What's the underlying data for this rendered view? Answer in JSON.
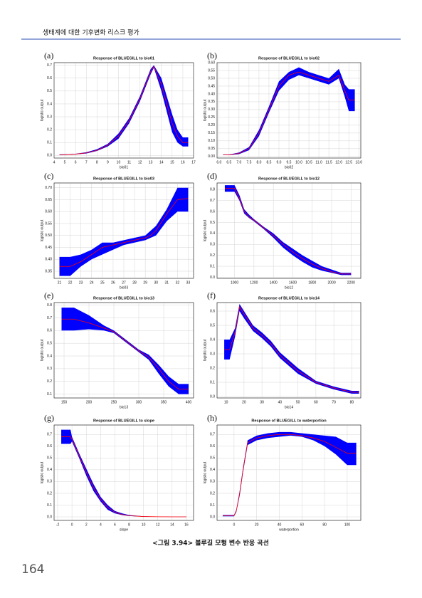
{
  "header": {
    "title": "생태계에 대한 기후변화 리스크 평가"
  },
  "caption": "<그림 3.94> 블루길 모형 변수 반응 곡선",
  "page_number": "164",
  "chart_data": [
    {
      "type": "band-line",
      "panel": "(a)",
      "title": "Response of BLUEGILL to bio01",
      "xlabel": "bio01",
      "ylabel": "logistic output",
      "color": "#ff0000",
      "band_color": "#0000ff",
      "grid": true,
      "xlim": [
        4,
        17
      ],
      "xticks": [
        4,
        5,
        6,
        7,
        8,
        9,
        10,
        11,
        12,
        13,
        14,
        15,
        16,
        17
      ],
      "ylim": [
        -0.02,
        0.72
      ],
      "yticks": [
        {
          "value": 0,
          "label": "0.0"
        },
        0.1,
        0.2,
        0.3,
        0.4,
        0.5,
        0.6,
        0.7
      ],
      "x": [
        4.5,
        5,
        6,
        7,
        8,
        9,
        10,
        11,
        12,
        13,
        13.3,
        14,
        15,
        15.5,
        16,
        16.5
      ],
      "values": [
        0.005,
        0.006,
        0.01,
        0.02,
        0.04,
        0.08,
        0.15,
        0.27,
        0.44,
        0.65,
        0.69,
        0.55,
        0.25,
        0.15,
        0.1,
        0.1
      ],
      "lower": [
        0.003,
        0.004,
        0.008,
        0.015,
        0.035,
        0.07,
        0.13,
        0.25,
        0.42,
        0.63,
        0.68,
        0.5,
        0.18,
        0.1,
        0.07,
        0.07
      ],
      "upper": [
        0.008,
        0.009,
        0.013,
        0.025,
        0.048,
        0.09,
        0.17,
        0.29,
        0.46,
        0.67,
        0.7,
        0.6,
        0.32,
        0.2,
        0.14,
        0.14
      ]
    },
    {
      "type": "band-line",
      "panel": "(b)",
      "title": "Response of BLUEGILL to bio02",
      "xlabel": "bio02",
      "ylabel": "logistic output",
      "color": "#ff0000",
      "band_color": "#0000ff",
      "grid": true,
      "xlim": [
        5.9,
        13.1
      ],
      "xticks": [
        {
          "value": 6,
          "label": "6.0"
        },
        6.5,
        {
          "value": 7,
          "label": "7.0"
        },
        7.5,
        {
          "value": 8,
          "label": "8.0"
        },
        8.5,
        {
          "value": 9,
          "label": "9.0"
        },
        9.5,
        {
          "value": 10,
          "label": "10.0"
        },
        10.5,
        {
          "value": 11,
          "label": "11.0"
        },
        11.5,
        {
          "value": 12,
          "label": "12.0"
        },
        12.5,
        {
          "value": 13,
          "label": "13.0"
        }
      ],
      "ylim": [
        -0.01,
        0.6
      ],
      "yticks": [
        {
          "value": 0,
          "label": "0.00"
        },
        0.05,
        {
          "value": 0.1,
          "label": "0.10"
        },
        0.15,
        {
          "value": 0.2,
          "label": "0.20"
        },
        0.25,
        {
          "value": 0.3,
          "label": "0.30"
        },
        0.35,
        {
          "value": 0.4,
          "label": "0.40"
        },
        0.45,
        {
          "value": 0.5,
          "label": "0.50"
        },
        0.55,
        {
          "value": 0.6,
          "label": "0.60"
        }
      ],
      "x": [
        6.2,
        6.5,
        7,
        7.5,
        8,
        8.5,
        9,
        9.5,
        10,
        10.5,
        11,
        11.5,
        12,
        12.3,
        12.5,
        12.8
      ],
      "values": [
        0.01,
        0.01,
        0.02,
        0.05,
        0.15,
        0.3,
        0.45,
        0.52,
        0.54,
        0.52,
        0.5,
        0.48,
        0.52,
        0.42,
        0.36,
        0.36
      ],
      "lower": [
        0.008,
        0.008,
        0.015,
        0.04,
        0.13,
        0.28,
        0.42,
        0.49,
        0.52,
        0.5,
        0.48,
        0.46,
        0.5,
        0.38,
        0.29,
        0.29
      ],
      "upper": [
        0.012,
        0.012,
        0.025,
        0.06,
        0.17,
        0.32,
        0.48,
        0.54,
        0.57,
        0.54,
        0.52,
        0.5,
        0.56,
        0.46,
        0.43,
        0.43
      ]
    },
    {
      "type": "band-line",
      "panel": "(c)",
      "title": "Response of BLUEGILL to bio03",
      "xlabel": "bio03",
      "ylabel": "logistic output",
      "color": "#ff0000",
      "band_color": "#0000ff",
      "grid": true,
      "xlim": [
        20.5,
        33.5
      ],
      "xticks": [
        21,
        22,
        23,
        24,
        25,
        26,
        27,
        28,
        29,
        30,
        31,
        32,
        33
      ],
      "ylim": [
        0.32,
        0.72
      ],
      "yticks": [
        0.35,
        {
          "value": 0.4,
          "label": "0.40"
        },
        0.45,
        {
          "value": 0.5,
          "label": "0.50"
        },
        0.55,
        {
          "value": 0.6,
          "label": "0.60"
        },
        0.65,
        {
          "value": 0.7,
          "label": "0.70"
        }
      ],
      "x": [
        21,
        22,
        23,
        24,
        25,
        26,
        27,
        28,
        29,
        29.5,
        30,
        31,
        32,
        33
      ],
      "values": [
        0.37,
        0.37,
        0.39,
        0.42,
        0.45,
        0.46,
        0.47,
        0.48,
        0.49,
        0.5,
        0.52,
        0.59,
        0.65,
        0.655
      ],
      "lower": [
        0.33,
        0.33,
        0.37,
        0.4,
        0.42,
        0.44,
        0.46,
        0.47,
        0.48,
        0.49,
        0.5,
        0.56,
        0.6,
        0.6
      ],
      "upper": [
        0.41,
        0.41,
        0.42,
        0.44,
        0.47,
        0.47,
        0.48,
        0.49,
        0.5,
        0.52,
        0.54,
        0.61,
        0.7,
        0.7
      ]
    },
    {
      "type": "band-line",
      "panel": "(d)",
      "title": "Response of BLUEGILL to bio12",
      "xlabel": "bio12",
      "ylabel": "logistic output",
      "color": "#ff0000",
      "band_color": "#0000ff",
      "grid": true,
      "xlim": [
        820,
        2300
      ],
      "xticks": [
        1000,
        1200,
        1400,
        1600,
        1800,
        2000,
        2200
      ],
      "ylim": [
        -0.01,
        0.86
      ],
      "yticks": [
        {
          "value": 0,
          "label": "0.0"
        },
        0.1,
        0.2,
        0.3,
        0.4,
        0.5,
        0.6,
        0.7,
        0.8
      ],
      "x": [
        900,
        1000,
        1050,
        1100,
        1150,
        1200,
        1300,
        1400,
        1500,
        1600,
        1700,
        1800,
        1900,
        2000,
        2100,
        2200
      ],
      "values": [
        0.81,
        0.81,
        0.72,
        0.6,
        0.55,
        0.52,
        0.45,
        0.38,
        0.3,
        0.23,
        0.17,
        0.12,
        0.08,
        0.05,
        0.03,
        0.03
      ],
      "lower": [
        0.78,
        0.78,
        0.7,
        0.58,
        0.54,
        0.51,
        0.44,
        0.36,
        0.27,
        0.2,
        0.14,
        0.09,
        0.06,
        0.04,
        0.02,
        0.02
      ],
      "upper": [
        0.84,
        0.84,
        0.75,
        0.62,
        0.57,
        0.53,
        0.46,
        0.4,
        0.32,
        0.26,
        0.2,
        0.15,
        0.1,
        0.07,
        0.04,
        0.04
      ]
    },
    {
      "type": "band-line",
      "panel": "(e)",
      "title": "Response of BLUEGILL to bio13",
      "xlabel": "bio13",
      "ylabel": "logistic output",
      "color": "#ff0000",
      "band_color": "#0000ff",
      "grid": true,
      "xlim": [
        130,
        410
      ],
      "xticks": [
        150,
        200,
        250,
        300,
        350,
        400
      ],
      "ylim": [
        0.07,
        0.82
      ],
      "yticks": [
        0.1,
        0.2,
        0.3,
        0.4,
        0.5,
        0.6,
        0.7,
        0.8
      ],
      "x": [
        145,
        170,
        200,
        230,
        250,
        270,
        300,
        320,
        340,
        360,
        380,
        400
      ],
      "values": [
        0.69,
        0.69,
        0.66,
        0.62,
        0.59,
        0.53,
        0.44,
        0.39,
        0.3,
        0.2,
        0.14,
        0.14
      ],
      "lower": [
        0.6,
        0.6,
        0.61,
        0.6,
        0.58,
        0.52,
        0.43,
        0.37,
        0.26,
        0.16,
        0.1,
        0.1
      ],
      "upper": [
        0.78,
        0.78,
        0.72,
        0.64,
        0.6,
        0.54,
        0.45,
        0.41,
        0.33,
        0.24,
        0.18,
        0.18
      ]
    },
    {
      "type": "band-line",
      "panel": "(f)",
      "title": "Response of BLUEGILL to bio14",
      "xlabel": "bio14",
      "ylabel": "logistic output",
      "color": "#ff0000",
      "band_color": "#0000ff",
      "grid": true,
      "xlim": [
        5,
        85
      ],
      "xticks": [
        10,
        20,
        30,
        40,
        50,
        60,
        70,
        80
      ],
      "ylim": [
        -0.01,
        0.66
      ],
      "yticks": [
        {
          "value": 0,
          "label": "0.0"
        },
        0.1,
        0.2,
        0.3,
        0.4,
        0.5,
        0.6
      ],
      "x": [
        9,
        12,
        15,
        17.5,
        20,
        25,
        30,
        35,
        40,
        50,
        60,
        70,
        80,
        84
      ],
      "values": [
        0.33,
        0.33,
        0.45,
        0.63,
        0.58,
        0.48,
        0.43,
        0.37,
        0.29,
        0.18,
        0.1,
        0.06,
        0.03,
        0.03
      ],
      "lower": [
        0.26,
        0.26,
        0.42,
        0.6,
        0.55,
        0.46,
        0.41,
        0.35,
        0.27,
        0.16,
        0.09,
        0.05,
        0.02,
        0.02
      ],
      "upper": [
        0.4,
        0.4,
        0.48,
        0.65,
        0.6,
        0.5,
        0.45,
        0.39,
        0.31,
        0.2,
        0.11,
        0.07,
        0.04,
        0.04
      ]
    },
    {
      "type": "band-line",
      "panel": "(g)",
      "title": "Response of BLUEGILL to slope",
      "xlabel": "slope",
      "ylabel": "logistic output",
      "color": "#ff0000",
      "band_color": "#0000ff",
      "grid": true,
      "xlim": [
        -2.5,
        17
      ],
      "xticks": [
        -2,
        0,
        2,
        4,
        6,
        8,
        10,
        12,
        14,
        16
      ],
      "ylim": [
        -0.03,
        0.78
      ],
      "yticks": [
        {
          "value": 0,
          "label": "0.0"
        },
        0.1,
        0.2,
        0.3,
        0.4,
        0.5,
        0.6,
        0.7
      ],
      "x": [
        -1.5,
        -0.2,
        0,
        1,
        2,
        3,
        4,
        5,
        6,
        7,
        8,
        10,
        12,
        14,
        16
      ],
      "values": [
        0.68,
        0.68,
        0.66,
        0.52,
        0.38,
        0.25,
        0.15,
        0.08,
        0.04,
        0.02,
        0.01,
        0.003,
        0.001,
        0,
        0
      ],
      "lower": [
        0.62,
        0.62,
        0.64,
        0.5,
        0.35,
        0.22,
        0.13,
        0.06,
        0.03,
        0.015,
        0.007,
        0.002,
        0,
        0,
        0
      ],
      "upper": [
        0.74,
        0.74,
        0.68,
        0.54,
        0.41,
        0.28,
        0.17,
        0.1,
        0.05,
        0.03,
        0.015,
        0.005,
        0.002,
        0.001,
        0.001
      ]
    },
    {
      "type": "band-line",
      "panel": "(h)",
      "title": "Response of BLUEGILL to waterportion",
      "xlabel": "waterportion",
      "ylabel": "logistic output",
      "color": "#ff0000",
      "band_color": "#0000ff",
      "grid": true,
      "xlim": [
        -15,
        112
      ],
      "xticks": [
        0,
        20,
        40,
        60,
        80,
        100
      ],
      "ylim": [
        -0.03,
        0.78
      ],
      "yticks": [
        {
          "value": 0,
          "label": "0.0"
        },
        0.1,
        0.2,
        0.3,
        0.4,
        0.5,
        0.6,
        0.7
      ],
      "x": [
        -10,
        0,
        2,
        5,
        8,
        12,
        20,
        30,
        40,
        50,
        60,
        70,
        80,
        90,
        100,
        108
      ],
      "values": [
        0.01,
        0.01,
        0.05,
        0.2,
        0.4,
        0.63,
        0.67,
        0.69,
        0.7,
        0.7,
        0.69,
        0.67,
        0.64,
        0.59,
        0.54,
        0.54
      ],
      "lower": [
        0.005,
        0.005,
        0.04,
        0.18,
        0.38,
        0.61,
        0.65,
        0.67,
        0.68,
        0.69,
        0.68,
        0.65,
        0.6,
        0.53,
        0.44,
        0.44
      ],
      "upper": [
        0.015,
        0.015,
        0.06,
        0.22,
        0.42,
        0.65,
        0.69,
        0.71,
        0.72,
        0.72,
        0.71,
        0.7,
        0.69,
        0.68,
        0.63,
        0.63
      ]
    }
  ]
}
